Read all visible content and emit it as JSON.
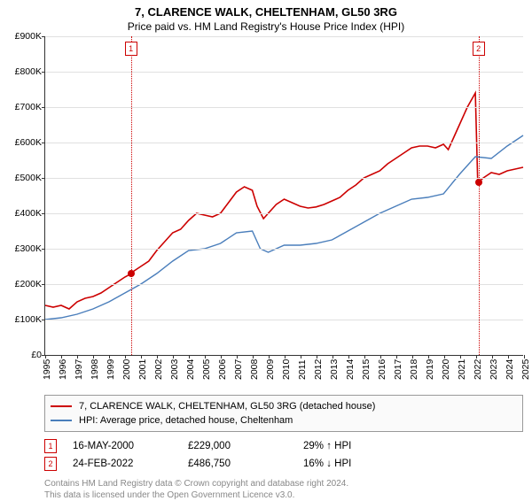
{
  "title": "7, CLARENCE WALK, CHELTENHAM, GL50 3RG",
  "subtitle": "Price paid vs. HM Land Registry's House Price Index (HPI)",
  "chart": {
    "type": "line",
    "background_color": "#ffffff",
    "grid_color": "#e0e0e0",
    "axis_color": "#333333",
    "tick_fontsize": 10.5,
    "ylim": [
      0,
      900000
    ],
    "ytick_step": 100000,
    "ylabels": [
      "£0",
      "£100K",
      "£200K",
      "£300K",
      "£400K",
      "£500K",
      "£600K",
      "£700K",
      "£800K",
      "£900K"
    ],
    "xlim": [
      1995,
      2025
    ],
    "xtick_step": 1,
    "xlabels": [
      "1995",
      "1996",
      "1997",
      "1998",
      "1999",
      "2000",
      "2001",
      "2002",
      "2003",
      "2004",
      "2005",
      "2006",
      "2007",
      "2008",
      "2009",
      "2010",
      "2011",
      "2012",
      "2013",
      "2014",
      "2015",
      "2016",
      "2017",
      "2018",
      "2019",
      "2020",
      "2021",
      "2022",
      "2023",
      "2024",
      "2025"
    ],
    "series": [
      {
        "name": "7, CLARENCE WALK, CHELTENHAM, GL50 3RG (detached house)",
        "color": "#cc0000",
        "line_width": 1.6,
        "x": [
          1995,
          1995.5,
          1996,
          1996.5,
          1997,
          1997.5,
          1998,
          1998.5,
          1999,
          1999.5,
          2000,
          2000.37,
          2000.5,
          2001,
          2001.5,
          2002,
          2002.5,
          2003,
          2003.5,
          2004,
          2004.5,
          2005,
          2005.5,
          2006,
          2006.5,
          2007,
          2007.5,
          2008,
          2008.3,
          2008.7,
          2009,
          2009.5,
          2010,
          2010.5,
          2011,
          2011.5,
          2012,
          2012.5,
          2013,
          2013.5,
          2014,
          2014.5,
          2015,
          2015.5,
          2016,
          2016.5,
          2017,
          2017.5,
          2018,
          2018.5,
          2019,
          2019.5,
          2020,
          2020.3,
          2020.7,
          2021,
          2021.5,
          2022,
          2022.15,
          2022.5,
          2023,
          2023.5,
          2024,
          2024.5,
          2025
        ],
        "y": [
          140000,
          135000,
          140000,
          130000,
          150000,
          160000,
          165000,
          175000,
          190000,
          205000,
          220000,
          229000,
          235000,
          250000,
          265000,
          295000,
          320000,
          345000,
          355000,
          380000,
          400000,
          395000,
          390000,
          400000,
          430000,
          460000,
          475000,
          465000,
          420000,
          385000,
          400000,
          425000,
          440000,
          430000,
          420000,
          415000,
          418000,
          425000,
          435000,
          445000,
          465000,
          480000,
          500000,
          510000,
          520000,
          540000,
          555000,
          570000,
          585000,
          590000,
          590000,
          585000,
          595000,
          580000,
          620000,
          650000,
          700000,
          740000,
          486750,
          500000,
          515000,
          510000,
          520000,
          525000,
          530000
        ]
      },
      {
        "name": "HPI: Average price, detached house, Cheltenham",
        "color": "#4a7ebb",
        "line_width": 1.4,
        "x": [
          1995,
          1996,
          1997,
          1998,
          1999,
          2000,
          2001,
          2002,
          2003,
          2004,
          2005,
          2006,
          2007,
          2008,
          2008.5,
          2009,
          2010,
          2011,
          2012,
          2013,
          2014,
          2015,
          2016,
          2017,
          2018,
          2019,
          2020,
          2021,
          2022,
          2023,
          2024,
          2025
        ],
        "y": [
          100000,
          105000,
          115000,
          130000,
          150000,
          175000,
          200000,
          230000,
          265000,
          295000,
          300000,
          315000,
          345000,
          350000,
          300000,
          290000,
          310000,
          310000,
          315000,
          325000,
          350000,
          375000,
          400000,
          420000,
          440000,
          445000,
          455000,
          510000,
          560000,
          555000,
          590000,
          620000
        ]
      }
    ],
    "sale_markers": [
      {
        "n": "1",
        "x": 2000.37,
        "y": 229000,
        "color": "#cc0000",
        "dot_color": "#cc0000"
      },
      {
        "n": "2",
        "x": 2022.15,
        "y": 486750,
        "color": "#cc0000",
        "dot_color": "#cc0000"
      }
    ]
  },
  "legend": {
    "border_color": "#999999",
    "background": "#fafafa",
    "items": [
      {
        "color": "#cc0000",
        "label": "7, CLARENCE WALK, CHELTENHAM, GL50 3RG (detached house)"
      },
      {
        "color": "#4a7ebb",
        "label": "HPI: Average price, detached house, Cheltenham"
      }
    ]
  },
  "sale_points": [
    {
      "n": "1",
      "color": "#cc0000",
      "date": "16-MAY-2000",
      "price": "£229,000",
      "delta": "29% ↑ HPI"
    },
    {
      "n": "2",
      "color": "#cc0000",
      "date": "24-FEB-2022",
      "price": "£486,750",
      "delta": "16% ↓ HPI"
    }
  ],
  "footer": {
    "line1": "Contains HM Land Registry data © Crown copyright and database right 2024.",
    "line2": "This data is licensed under the Open Government Licence v3.0."
  }
}
